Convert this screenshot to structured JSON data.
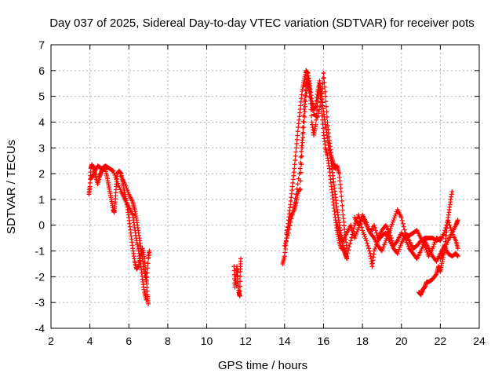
{
  "chart_data": {
    "type": "scatter",
    "title": "Day 037 of 2025, Sidereal Day-to-day VTEC variation (SDTVAR) for receiver pots",
    "xlabel": "GPS time / hours",
    "ylabel": "SDTVAR / TECUs",
    "xlim": [
      2,
      24
    ],
    "ylim": [
      -4,
      7
    ],
    "xticks": [
      2,
      4,
      6,
      8,
      10,
      12,
      14,
      16,
      18,
      20,
      22,
      24
    ],
    "yticks": [
      -4,
      -3,
      -2,
      -1,
      0,
      1,
      2,
      3,
      4,
      5,
      6,
      7
    ],
    "grid": true,
    "marker": "+",
    "series": [
      {
        "name": "SDTVAR",
        "color": "#ff0000",
        "segments": [
          [
            [
              3.95,
              1.2
            ],
            [
              4.0,
              1.5
            ],
            [
              4.05,
              2.2
            ],
            [
              4.1,
              2.35
            ],
            [
              4.2,
              2.2
            ],
            [
              4.3,
              1.9
            ],
            [
              4.4,
              1.6
            ],
            [
              4.5,
              1.9
            ],
            [
              4.6,
              2.1
            ],
            [
              4.7,
              2.2
            ],
            [
              4.8,
              2.15
            ],
            [
              4.9,
              1.8
            ],
            [
              5.0,
              1.4
            ],
            [
              5.1,
              1.0
            ],
            [
              5.2,
              0.6
            ],
            [
              5.25,
              0.5
            ],
            [
              5.3,
              0.9
            ],
            [
              5.35,
              1.5
            ],
            [
              5.4,
              2.0
            ],
            [
              5.5,
              2.1
            ],
            [
              5.6,
              2.0
            ],
            [
              5.7,
              1.6
            ],
            [
              5.8,
              1.2
            ],
            [
              5.9,
              0.8
            ],
            [
              6.0,
              0.3
            ],
            [
              6.1,
              -0.3
            ],
            [
              6.2,
              -0.9
            ],
            [
              6.3,
              -1.4
            ],
            [
              6.4,
              -1.7
            ],
            [
              6.5,
              -1.6
            ],
            [
              6.6,
              -1.2
            ],
            [
              6.7,
              -0.9
            ],
            [
              6.8,
              -1.3
            ],
            [
              6.9,
              -2.0
            ],
            [
              6.95,
              -2.7
            ],
            [
              7.0,
              -3.05
            ]
          ],
          [
            [
              4.05,
              1.8
            ],
            [
              4.2,
              2.0
            ],
            [
              4.4,
              2.3
            ],
            [
              4.6,
              2.2
            ],
            [
              4.8,
              2.3
            ],
            [
              5.0,
              2.2
            ],
            [
              5.2,
              2.1
            ],
            [
              5.4,
              1.7
            ],
            [
              5.6,
              1.3
            ],
            [
              5.8,
              1.0
            ],
            [
              6.0,
              0.7
            ],
            [
              6.2,
              0.4
            ],
            [
              6.3,
              -0.1
            ],
            [
              6.4,
              -0.6
            ],
            [
              6.5,
              -1.0
            ],
            [
              6.6,
              -1.5
            ],
            [
              6.7,
              -2.1
            ],
            [
              6.8,
              -2.6
            ],
            [
              6.9,
              -2.9
            ]
          ],
          [
            [
              5.6,
              1.9
            ],
            [
              5.8,
              1.6
            ],
            [
              6.0,
              1.2
            ],
            [
              6.2,
              0.9
            ],
            [
              6.3,
              0.6
            ],
            [
              6.4,
              0.2
            ],
            [
              6.5,
              -0.3
            ],
            [
              6.6,
              -0.8
            ],
            [
              6.7,
              -1.3
            ],
            [
              6.8,
              -1.8
            ],
            [
              6.9,
              -2.2
            ],
            [
              7.0,
              -1.3
            ],
            [
              7.05,
              -1.0
            ]
          ],
          [
            [
              11.4,
              -1.6
            ],
            [
              11.45,
              -2.4
            ],
            [
              11.5,
              -2.0
            ],
            [
              11.55,
              -1.6
            ],
            [
              11.6,
              -2.2
            ],
            [
              11.65,
              -2.6
            ],
            [
              11.7,
              -2.75
            ],
            [
              11.72,
              -1.8
            ],
            [
              11.75,
              -1.3
            ]
          ],
          [
            [
              13.9,
              -1.5
            ],
            [
              14.0,
              -1.2
            ],
            [
              14.1,
              -0.5
            ],
            [
              14.2,
              0.2
            ],
            [
              14.3,
              0.8
            ],
            [
              14.4,
              1.5
            ],
            [
              14.5,
              2.2
            ],
            [
              14.6,
              3.0
            ],
            [
              14.7,
              3.8
            ],
            [
              14.8,
              4.5
            ],
            [
              14.9,
              5.2
            ],
            [
              15.0,
              5.6
            ],
            [
              15.1,
              6.0
            ],
            [
              15.2,
              5.9
            ],
            [
              15.3,
              5.4
            ],
            [
              15.4,
              4.8
            ],
            [
              15.5,
              4.5
            ],
            [
              15.6,
              4.6
            ],
            [
              15.7,
              5.2
            ],
            [
              15.8,
              5.6
            ],
            [
              15.9,
              5.0
            ],
            [
              16.0,
              4.4
            ],
            [
              16.1,
              3.9
            ],
            [
              16.2,
              3.4
            ],
            [
              16.3,
              2.9
            ],
            [
              16.4,
              2.4
            ],
            [
              16.5,
              1.8
            ],
            [
              16.6,
              1.2
            ],
            [
              16.7,
              0.6
            ],
            [
              16.8,
              0.1
            ],
            [
              16.9,
              -0.4
            ],
            [
              17.0,
              -0.8
            ],
            [
              17.1,
              -1.1
            ],
            [
              17.2,
              -1.3
            ]
          ],
          [
            [
              14.0,
              -0.8
            ],
            [
              14.2,
              -0.3
            ],
            [
              14.4,
              0.4
            ],
            [
              14.6,
              1.2
            ],
            [
              14.8,
              2.2
            ],
            [
              14.9,
              3.3
            ],
            [
              15.0,
              4.5
            ],
            [
              15.1,
              5.4
            ],
            [
              15.2,
              5.8
            ],
            [
              15.3,
              5.2
            ],
            [
              15.4,
              4.0
            ],
            [
              15.5,
              3.5
            ],
            [
              15.6,
              3.9
            ],
            [
              15.7,
              4.8
            ],
            [
              15.8,
              5.4
            ],
            [
              15.9,
              4.4
            ],
            [
              16.0,
              3.6
            ],
            [
              16.1,
              3.0
            ],
            [
              16.2,
              2.7
            ],
            [
              16.3,
              2.2
            ],
            [
              16.4,
              1.5
            ],
            [
              16.5,
              0.9
            ],
            [
              16.6,
              0.3
            ],
            [
              16.7,
              -0.2
            ],
            [
              16.8,
              -0.6
            ],
            [
              16.9,
              -0.9
            ]
          ],
          [
            [
              14.1,
              -0.3
            ],
            [
              14.3,
              0.3
            ],
            [
              14.5,
              0.6
            ],
            [
              14.6,
              0.9
            ],
            [
              14.7,
              1.3
            ],
            [
              14.8,
              1.4
            ],
            [
              14.9,
              3.0
            ],
            [
              15.0,
              4.0
            ],
            [
              15.1,
              5.0
            ],
            [
              15.2,
              5.6
            ],
            [
              15.3,
              5.0
            ],
            [
              15.5,
              4.3
            ],
            [
              15.7,
              4.2
            ],
            [
              15.9,
              4.9
            ],
            [
              16.0,
              5.9
            ],
            [
              16.1,
              5.0
            ],
            [
              16.2,
              4.0
            ],
            [
              16.3,
              3.3
            ],
            [
              16.4,
              2.7
            ],
            [
              16.5,
              2.4
            ],
            [
              16.6,
              2.2
            ],
            [
              16.7,
              2.3
            ],
            [
              16.8,
              2.0
            ],
            [
              16.9,
              1.3
            ],
            [
              17.0,
              0.4
            ],
            [
              17.1,
              -0.3
            ],
            [
              17.2,
              -0.9
            ]
          ],
          [
            [
              16.7,
              0.1
            ],
            [
              16.8,
              -0.3
            ],
            [
              17.0,
              -0.6
            ],
            [
              17.2,
              -0.3
            ],
            [
              17.4,
              0.0
            ],
            [
              17.6,
              -0.5
            ],
            [
              17.8,
              -0.1
            ],
            [
              18.0,
              0.3
            ],
            [
              18.2,
              0.0
            ],
            [
              18.4,
              -0.3
            ],
            [
              18.6,
              0.0
            ],
            [
              18.8,
              -0.5
            ],
            [
              19.0,
              -0.2
            ],
            [
              19.2,
              0.0
            ],
            [
              19.4,
              -0.3
            ],
            [
              19.6,
              -0.8
            ],
            [
              19.8,
              -0.6
            ],
            [
              20.0,
              -0.3
            ],
            [
              20.2,
              -0.5
            ],
            [
              20.4,
              -0.9
            ],
            [
              20.6,
              -1.1
            ],
            [
              20.8,
              -1.3
            ],
            [
              21.0,
              -1.0
            ],
            [
              21.2,
              -0.6
            ],
            [
              21.4,
              -0.9
            ],
            [
              21.6,
              -1.2
            ],
            [
              21.8,
              -1.4
            ],
            [
              22.0,
              -1.1
            ],
            [
              22.2,
              -0.8
            ],
            [
              22.4,
              -1.1
            ],
            [
              22.6,
              -1.2
            ],
            [
              22.8,
              -1.1
            ],
            [
              22.9,
              -1.2
            ]
          ],
          [
            [
              17.0,
              -0.9
            ],
            [
              17.2,
              -1.2
            ],
            [
              17.4,
              -0.6
            ],
            [
              17.6,
              0.0
            ],
            [
              17.8,
              0.4
            ],
            [
              18.0,
              -0.2
            ],
            [
              18.2,
              -0.6
            ],
            [
              18.4,
              -1.1
            ],
            [
              18.5,
              -1.6
            ],
            [
              18.6,
              -1.0
            ],
            [
              18.8,
              -0.6
            ],
            [
              19.0,
              -0.4
            ],
            [
              19.2,
              -0.3
            ],
            [
              19.4,
              -0.6
            ],
            [
              19.6,
              -0.9
            ],
            [
              19.8,
              -1.1
            ],
            [
              20.0,
              -0.7
            ],
            [
              20.2,
              -0.4
            ],
            [
              20.4,
              -0.4
            ],
            [
              20.6,
              -0.3
            ],
            [
              20.8,
              -0.2
            ],
            [
              21.0,
              -0.5
            ],
            [
              21.2,
              -0.8
            ],
            [
              21.4,
              -1.2
            ],
            [
              21.6,
              -0.9
            ],
            [
              21.8,
              -0.5
            ],
            [
              22.0,
              -0.6
            ],
            [
              22.2,
              -0.3
            ],
            [
              22.4,
              0.2
            ],
            [
              22.6,
              -0.3
            ],
            [
              22.8,
              -0.6
            ],
            [
              22.9,
              -0.9
            ]
          ],
          [
            [
              17.6,
              0.3
            ],
            [
              17.8,
              0.0
            ],
            [
              18.0,
              0.4
            ],
            [
              18.2,
              0.1
            ],
            [
              18.4,
              -0.3
            ],
            [
              18.6,
              -0.5
            ],
            [
              18.8,
              -0.8
            ],
            [
              19.0,
              -1.0
            ],
            [
              19.2,
              -0.6
            ],
            [
              19.4,
              -0.2
            ],
            [
              19.6,
              0.2
            ],
            [
              19.8,
              0.6
            ],
            [
              20.0,
              0.3
            ],
            [
              20.2,
              -0.3
            ],
            [
              20.4,
              -0.6
            ],
            [
              20.6,
              -0.9
            ],
            [
              20.8,
              -0.8
            ],
            [
              21.0,
              -0.6
            ],
            [
              21.2,
              -0.5
            ],
            [
              21.4,
              -0.5
            ],
            [
              21.6,
              -0.5
            ],
            [
              21.8,
              -0.6
            ],
            [
              22.0,
              -0.5
            ]
          ],
          [
            [
              20.9,
              -2.6
            ],
            [
              21.0,
              -2.7
            ],
            [
              21.1,
              -2.5
            ],
            [
              21.2,
              -2.4
            ],
            [
              21.3,
              -2.2
            ],
            [
              21.4,
              -2.2
            ],
            [
              21.6,
              -2.1
            ],
            [
              21.8,
              -1.9
            ],
            [
              21.9,
              -1.6
            ],
            [
              22.0,
              -1.8
            ],
            [
              22.1,
              -1.4
            ],
            [
              22.2,
              -1.0
            ],
            [
              22.3,
              -0.4
            ],
            [
              22.4,
              0.3
            ],
            [
              22.5,
              0.8
            ],
            [
              22.6,
              1.3
            ]
          ],
          [
            [
              22.0,
              -1.3
            ],
            [
              22.2,
              -1.0
            ],
            [
              22.4,
              -0.6
            ],
            [
              22.6,
              -0.3
            ],
            [
              22.8,
              0.0
            ],
            [
              22.9,
              0.2
            ]
          ]
        ]
      }
    ]
  }
}
